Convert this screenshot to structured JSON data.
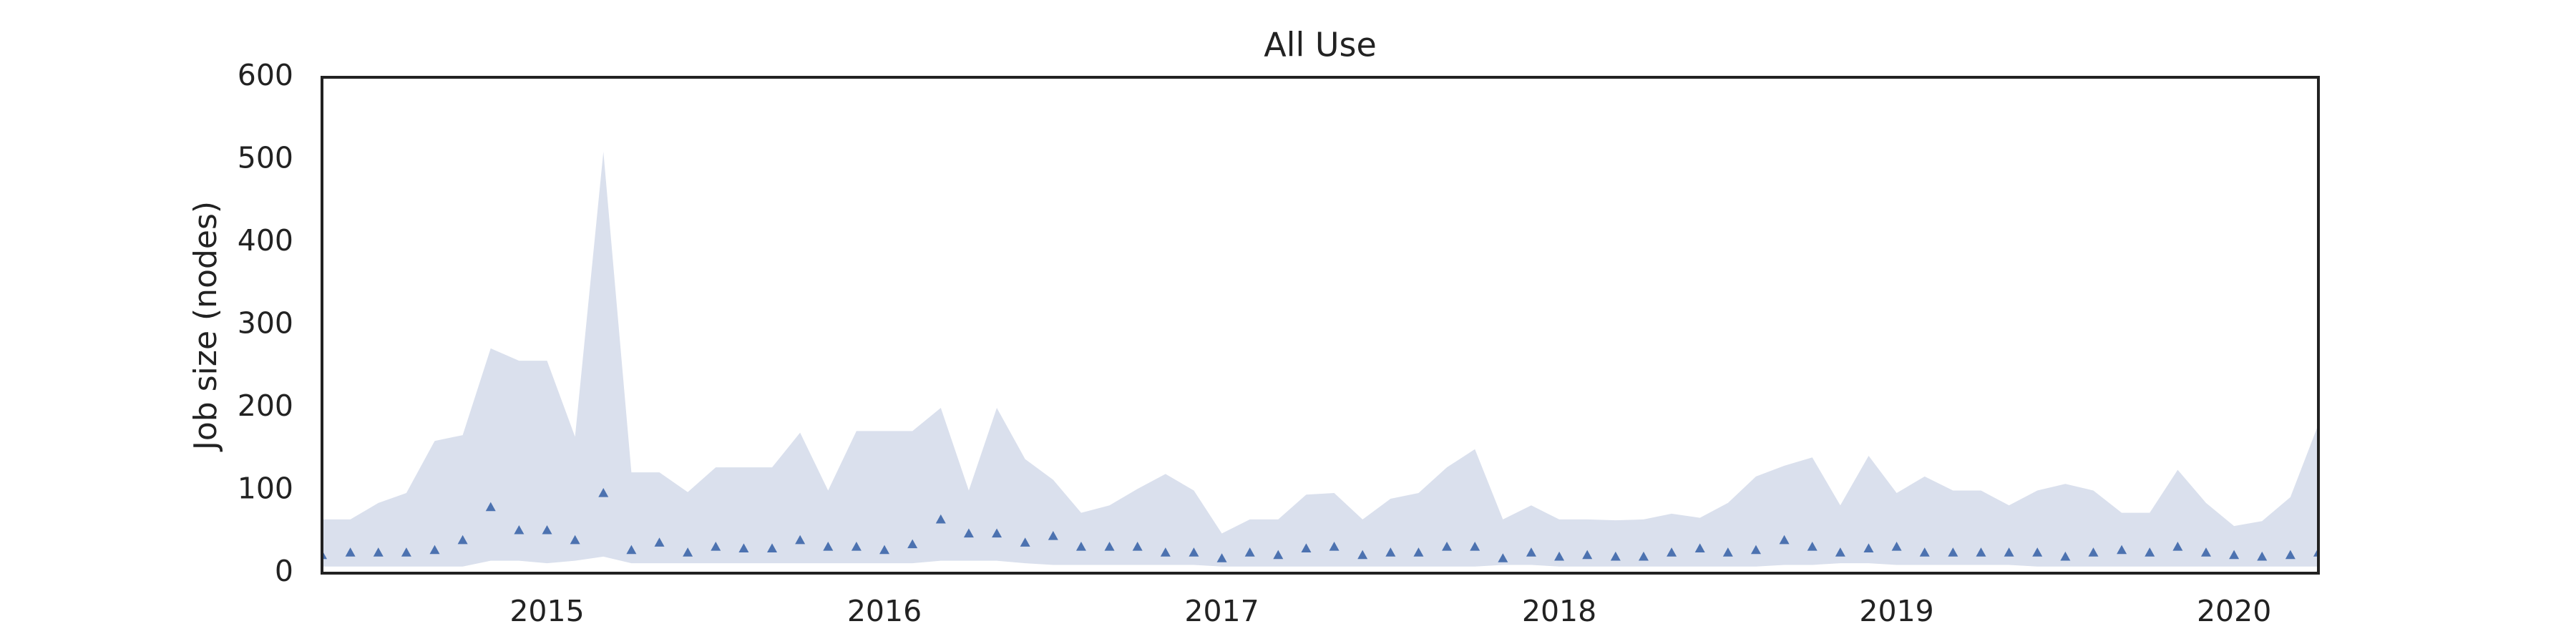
{
  "chart_data": {
    "type": "area",
    "title": "All Use",
    "y_label": "Job size (nodes)",
    "x": [
      2014.333,
      2014.417,
      2014.5,
      2014.583,
      2014.667,
      2014.75,
      2014.833,
      2014.917,
      2015,
      2015.083,
      2015.167,
      2015.25,
      2015.333,
      2015.417,
      2015.5,
      2015.583,
      2015.667,
      2015.75,
      2015.833,
      2015.917,
      2016,
      2016.083,
      2016.167,
      2016.25,
      2016.333,
      2016.417,
      2016.5,
      2016.583,
      2016.667,
      2016.75,
      2016.833,
      2016.917,
      2017,
      2017.083,
      2017.167,
      2017.25,
      2017.333,
      2017.417,
      2017.5,
      2017.583,
      2017.667,
      2017.75,
      2017.833,
      2017.917,
      2018,
      2018.083,
      2018.167,
      2018.25,
      2018.333,
      2018.417,
      2018.5,
      2018.583,
      2018.667,
      2018.75,
      2018.833,
      2018.917,
      2019,
      2019.083,
      2019.167,
      2019.25,
      2019.333,
      2019.417,
      2019.5,
      2019.583,
      2019.667,
      2019.75,
      2019.833,
      2019.917,
      2020,
      2020.083,
      2020.167,
      2020.25
    ],
    "band": {
      "color": "#dae0ed",
      "upper": [
        65,
        65,
        85,
        97,
        160,
        167,
        272,
        257,
        257,
        165,
        510,
        122,
        122,
        98,
        128,
        128,
        128,
        170,
        100,
        172,
        172,
        172,
        200,
        100,
        200,
        138,
        113,
        73,
        82,
        102,
        120,
        100,
        48,
        65,
        65,
        95,
        97,
        65,
        90,
        97,
        128,
        150,
        65,
        82,
        65,
        65,
        64,
        65,
        72,
        67,
        85,
        117,
        130,
        140,
        82,
        142,
        97,
        117,
        100,
        100,
        82,
        100,
        108,
        100,
        73,
        73,
        125,
        85,
        57,
        63,
        92,
        180
      ],
      "lower": [
        8,
        8,
        8,
        8,
        8,
        8,
        15,
        15,
        12,
        15,
        20,
        12,
        12,
        12,
        12,
        12,
        12,
        12,
        12,
        12,
        12,
        12,
        15,
        15,
        15,
        12,
        10,
        10,
        10,
        10,
        10,
        10,
        8,
        8,
        8,
        8,
        8,
        8,
        8,
        8,
        8,
        8,
        10,
        10,
        8,
        8,
        8,
        8,
        8,
        8,
        8,
        8,
        10,
        10,
        12,
        12,
        10,
        10,
        10,
        10,
        10,
        8,
        8,
        8,
        8,
        8,
        8,
        8,
        8,
        8,
        8,
        8
      ]
    },
    "median": {
      "color": "#4c72b0",
      "marker": "triangle",
      "values": [
        22,
        25,
        25,
        25,
        28,
        40,
        80,
        52,
        52,
        40,
        97,
        28,
        37,
        25,
        32,
        30,
        30,
        40,
        32,
        32,
        28,
        35,
        65,
        48,
        48,
        37,
        45,
        32,
        32,
        32,
        25,
        25,
        18,
        25,
        22,
        30,
        32,
        22,
        25,
        25,
        32,
        32,
        18,
        25,
        20,
        22,
        20,
        20,
        25,
        30,
        25,
        28,
        40,
        32,
        25,
        30,
        32,
        25,
        25,
        25,
        25,
        25,
        20,
        25,
        28,
        25,
        32,
        25,
        22,
        20,
        22,
        25
      ]
    },
    "xlim": [
      2014.333,
      2020.25
    ],
    "xticks": [
      2015,
      2016,
      2017,
      2018,
      2019,
      2020
    ],
    "ylim": [
      0,
      600
    ],
    "yticks": [
      0,
      100,
      200,
      300,
      400,
      500,
      600
    ],
    "grid": false
  }
}
